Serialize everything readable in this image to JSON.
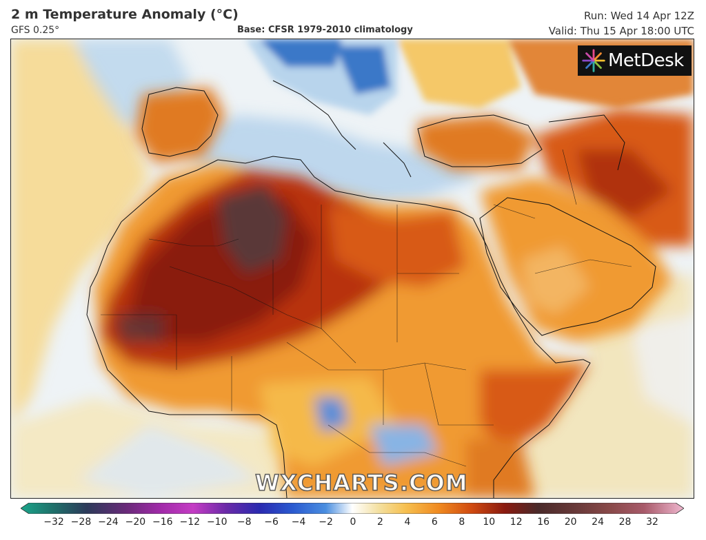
{
  "header": {
    "title": "2 m Temperature Anomaly (°C)",
    "model": "GFS 0.25°",
    "base": "Base: CFSR 1979-2010 climatology",
    "run": "Run: Wed 14 Apr 12Z",
    "valid": "Valid: Thu 15 Apr 18:00 UTC"
  },
  "logo": {
    "text": "MetDesk",
    "icon": "starburst-logo-icon"
  },
  "watermark": "WXCHARTS.COM",
  "colorbar": {
    "ticks": [
      "−32",
      "−28",
      "−24",
      "−20",
      "−16",
      "−12",
      "−10",
      "−8",
      "−6",
      "−4",
      "−2",
      "0",
      "2",
      "4",
      "6",
      "8",
      "10",
      "12",
      "16",
      "20",
      "24",
      "28",
      "32"
    ],
    "colors": [
      "#1aa58a",
      "#1f6f6a",
      "#2c3a5a",
      "#6a2a7a",
      "#a02aa8",
      "#c43cc4",
      "#6a2aa8",
      "#2a2ab0",
      "#2a5ad0",
      "#4a8ee0",
      "#a8d0ee",
      "#ffffff",
      "#f4e0a0",
      "#f6c050",
      "#f08a20",
      "#d04a10",
      "#8a1a10",
      "#4a2a2a",
      "#6a3a3a",
      "#8a4a4a",
      "#a85a6a",
      "#d08aa0",
      "#f0b8d0"
    ]
  },
  "map": {
    "colors": {
      "ocean_neutral": "#eef3f6",
      "cool_blue": "#b8d4ec",
      "deep_blue": "#3a78c8",
      "warm_yellow": "#f7d78a",
      "orange": "#f09a30",
      "red_orange": "#d85a18",
      "dark_red": "#9a2410",
      "darkest": "#5a3838"
    }
  }
}
